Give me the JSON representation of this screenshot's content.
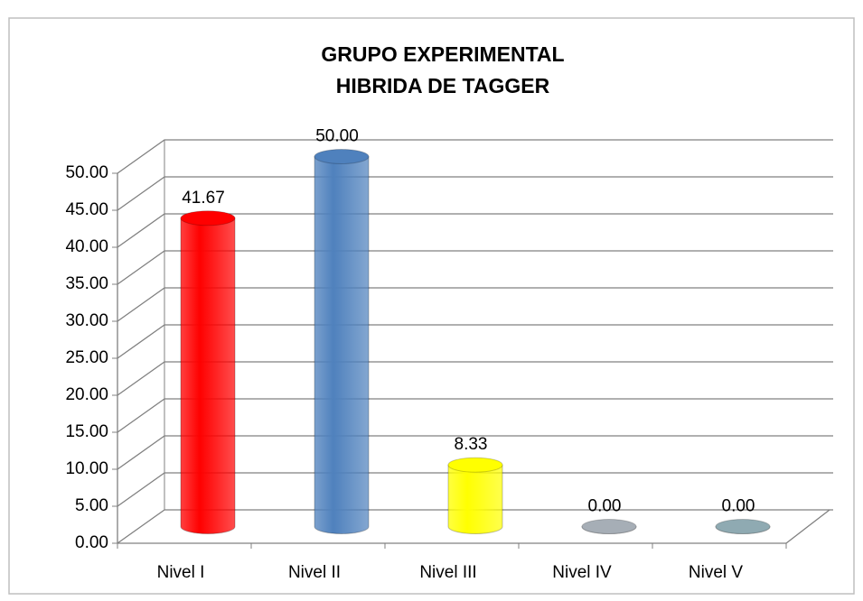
{
  "chart_data": {
    "type": "bar",
    "title": [
      "GRUPO EXPERIMENTAL",
      "HIBRIDA DE TAGGER"
    ],
    "categories": [
      "Nivel I",
      "Nivel II",
      "Nivel III",
      "Nivel IV",
      "Nivel V"
    ],
    "values": [
      41.67,
      50,
      8.33,
      0,
      0
    ],
    "value_labels": [
      "41.67",
      "50.00",
      "8.33",
      "0.00",
      "0.00"
    ],
    "colors": [
      "#ff0000",
      "#4f81bd",
      "#ffff00",
      "#a6aeb6",
      "#8faab2"
    ],
    "ylim": [
      0,
      50
    ],
    "yticks": [
      {
        "value": 0,
        "label": "0.00"
      },
      {
        "value": 5,
        "label": "5.00"
      },
      {
        "value": 10,
        "label": "10.00"
      },
      {
        "value": 15,
        "label": "15.00"
      },
      {
        "value": 20,
        "label": "20.00"
      },
      {
        "value": 25,
        "label": "25.00"
      },
      {
        "value": 30,
        "label": "30.00"
      },
      {
        "value": 35,
        "label": "35.00"
      },
      {
        "value": 40,
        "label": "40.00"
      },
      {
        "value": 45,
        "label": "45.00"
      },
      {
        "value": 50,
        "label": "50.00"
      }
    ],
    "grid": true
  }
}
